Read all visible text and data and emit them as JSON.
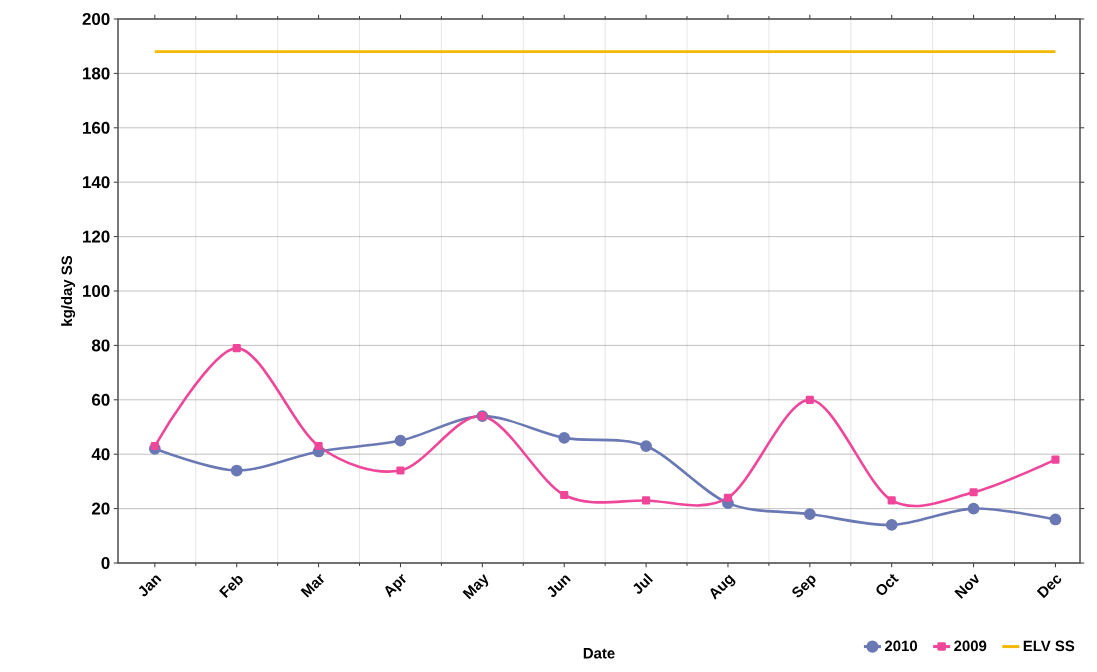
{
  "chart_data": {
    "type": "line",
    "xlabel": "Date",
    "ylabel": "kg/day SS",
    "categories": [
      "Jan",
      "Feb",
      "Mar",
      "Apr",
      "May",
      "Jun",
      "Jul",
      "Aug",
      "Sep",
      "Oct",
      "Nov",
      "Dec"
    ],
    "series": [
      {
        "name": "2010",
        "color": "#6a78b4",
        "marker": "circle",
        "values": [
          42,
          34,
          41,
          45,
          54,
          46,
          43,
          22,
          18,
          14,
          20,
          16
        ]
      },
      {
        "name": "2009",
        "color": "#f0469a",
        "marker": "square",
        "values": [
          43,
          79,
          43,
          34,
          54,
          25,
          23,
          24,
          60,
          23,
          26,
          38
        ]
      },
      {
        "name": "ELV SS",
        "color": "#f5b800",
        "marker": "none",
        "values": [
          188,
          188,
          188,
          188,
          188,
          188,
          188,
          188,
          188,
          188,
          188,
          188
        ]
      }
    ],
    "ylim": [
      0,
      200
    ],
    "yticks": [
      0,
      20,
      40,
      60,
      80,
      100,
      120,
      140,
      160,
      180,
      200
    ],
    "grid": true,
    "legend": "bottom right"
  }
}
